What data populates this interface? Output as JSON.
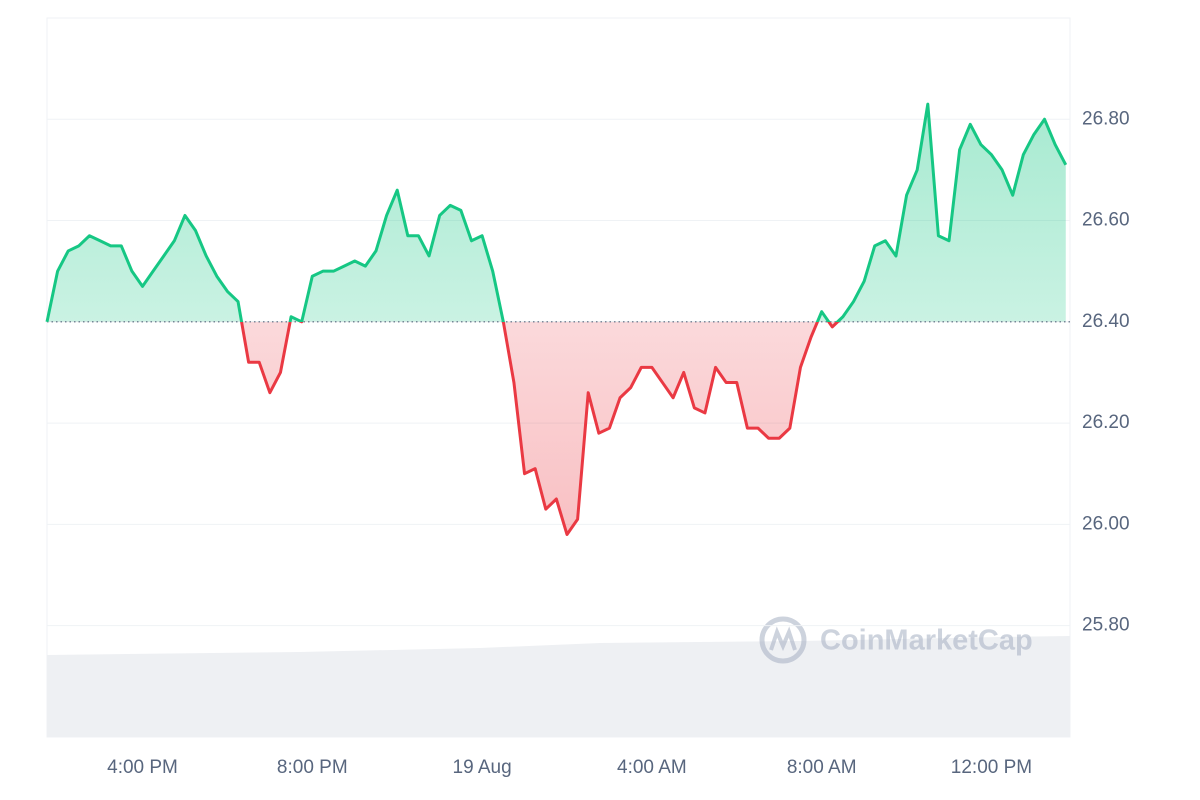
{
  "chart_data": {
    "type": "line",
    "watermark": "CoinMarketCap",
    "baseline": 26.4,
    "up_color": "#16c784",
    "down_color": "#ea3943",
    "xlim": [
      13.75,
      37.85
    ],
    "ylim": [
      25.58,
      27.0
    ],
    "xticks": [
      {
        "value": 16,
        "label": "4:00 PM"
      },
      {
        "value": 20,
        "label": "8:00 PM"
      },
      {
        "value": 24,
        "label": "19 Aug"
      },
      {
        "value": 28,
        "label": "4:00 AM"
      },
      {
        "value": 32,
        "label": "8:00 AM"
      },
      {
        "value": 36,
        "label": "12:00 PM"
      }
    ],
    "yticks": [
      {
        "value": 25.8,
        "label": "25.80"
      },
      {
        "value": 26.0,
        "label": "26.00"
      },
      {
        "value": 26.2,
        "label": "26.20"
      },
      {
        "value": 26.4,
        "label": "26.40"
      },
      {
        "value": 26.6,
        "label": "26.60"
      },
      {
        "value": 26.8,
        "label": "26.80"
      }
    ],
    "grid": true,
    "x": [
      13.75,
      14,
      14.25,
      14.5,
      14.75,
      15,
      15.25,
      15.5,
      15.75,
      16,
      16.25,
      16.5,
      16.75,
      17,
      17.25,
      17.5,
      17.75,
      18,
      18.25,
      18.5,
      18.75,
      19,
      19.25,
      19.5,
      19.75,
      20,
      20.25,
      20.5,
      20.75,
      21,
      21.25,
      21.5,
      21.75,
      22,
      22.25,
      22.5,
      22.75,
      23,
      23.25,
      23.5,
      23.75,
      24,
      24.25,
      24.5,
      24.75,
      25,
      25.25,
      25.5,
      25.75,
      26,
      26.25,
      26.5,
      26.75,
      27,
      27.25,
      27.5,
      27.75,
      28,
      28.25,
      28.5,
      28.75,
      29,
      29.25,
      29.5,
      29.75,
      30,
      30.25,
      30.5,
      30.75,
      31,
      31.25,
      31.5,
      31.75,
      32,
      32.25,
      32.5,
      32.75,
      33,
      33.25,
      33.5,
      33.75,
      34,
      34.25,
      34.5,
      34.75,
      35,
      35.25,
      35.5,
      35.75,
      36,
      36.25,
      36.5,
      36.75,
      37,
      37.25,
      37.5,
      37.75
    ],
    "values": [
      26.4,
      26.5,
      26.54,
      26.55,
      26.57,
      26.56,
      26.55,
      26.55,
      26.5,
      26.47,
      26.5,
      26.53,
      26.56,
      26.61,
      26.58,
      26.53,
      26.49,
      26.46,
      26.44,
      26.32,
      26.32,
      26.26,
      26.3,
      26.41,
      26.4,
      26.49,
      26.5,
      26.5,
      26.51,
      26.52,
      26.51,
      26.54,
      26.61,
      26.66,
      26.57,
      26.57,
      26.53,
      26.61,
      26.63,
      26.62,
      26.56,
      26.57,
      26.5,
      26.4,
      26.28,
      26.1,
      26.11,
      26.03,
      26.05,
      25.98,
      26.01,
      26.26,
      26.18,
      26.19,
      26.25,
      26.27,
      26.31,
      26.31,
      26.28,
      26.25,
      26.3,
      26.23,
      26.22,
      26.31,
      26.28,
      26.28,
      26.19,
      26.19,
      26.17,
      26.17,
      26.19,
      26.31,
      26.37,
      26.42,
      26.39,
      26.41,
      26.44,
      26.48,
      26.55,
      26.56,
      26.53,
      26.65,
      26.7,
      26.83,
      26.57,
      26.56,
      26.74,
      26.79,
      26.75,
      26.73,
      26.7,
      26.65,
      26.73,
      26.77,
      26.8,
      26.75,
      26.71
    ]
  }
}
